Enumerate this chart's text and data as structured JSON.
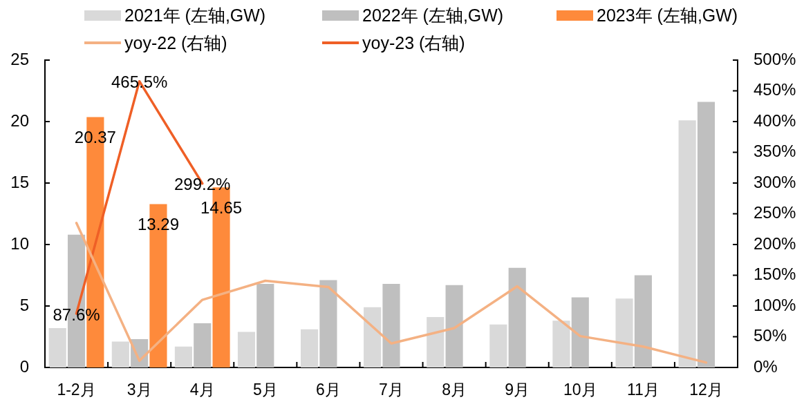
{
  "chart_data": {
    "type": "bar",
    "categories": [
      "1-2月",
      "3月",
      "4月",
      "5月",
      "6月",
      "7月",
      "8月",
      "9月",
      "10月",
      "11月",
      "12月"
    ],
    "series": [
      {
        "name": "2021年 (左轴,GW)",
        "color": "#d9d9d9",
        "values": [
          3.2,
          2.1,
          1.7,
          2.9,
          3.1,
          4.9,
          4.1,
          3.5,
          3.8,
          5.6,
          20.1
        ]
      },
      {
        "name": "2022年 (左轴,GW)",
        "color": "#bfbfbf",
        "values": [
          10.8,
          2.3,
          3.6,
          6.8,
          7.1,
          6.8,
          6.7,
          8.1,
          5.7,
          7.5,
          21.6
        ]
      },
      {
        "name": "2023年 (左轴,GW)",
        "color": "#fe8a3b",
        "values": [
          20.37,
          13.29,
          14.65,
          null,
          null,
          null,
          null,
          null,
          null,
          null,
          null
        ],
        "value_labels": [
          "20.37",
          "13.29",
          "14.65",
          null,
          null,
          null,
          null,
          null,
          null,
          null,
          null
        ]
      },
      {
        "name": "yoy-22 (右轴)",
        "type": "line",
        "axis": "y2",
        "color": "#f4b183",
        "values": [
          235,
          11,
          110,
          141,
          131,
          39,
          64,
          132,
          51,
          34,
          8
        ]
      },
      {
        "name": "yoy-23 (右轴)",
        "type": "line",
        "axis": "y2",
        "color": "#ef5f26",
        "values": [
          87.6,
          465.5,
          299.2,
          null,
          null,
          null,
          null,
          null,
          null,
          null,
          null
        ],
        "value_labels": [
          "87.6%",
          "465.5%",
          "299.2%",
          null,
          null,
          null,
          null,
          null,
          null,
          null,
          null
        ]
      }
    ],
    "ylim": [
      0,
      25
    ],
    "yticks": [
      0,
      5,
      10,
      15,
      20,
      25
    ],
    "y2lim": [
      0,
      500
    ],
    "y2ticks": [
      {
        "value": 0,
        "label": "0%"
      },
      {
        "value": 50,
        "label": "50%"
      },
      {
        "value": 100,
        "label": "100%"
      },
      {
        "value": 150,
        "label": "150%"
      },
      {
        "value": 200,
        "label": "200%"
      },
      {
        "value": 250,
        "label": "250%"
      },
      {
        "value": 300,
        "label": "300%"
      },
      {
        "value": 350,
        "label": "350%"
      },
      {
        "value": 400,
        "label": "400%"
      },
      {
        "value": 450,
        "label": "450%"
      },
      {
        "value": 500,
        "label": "500%"
      }
    ],
    "legend": "top",
    "marker": "none"
  }
}
